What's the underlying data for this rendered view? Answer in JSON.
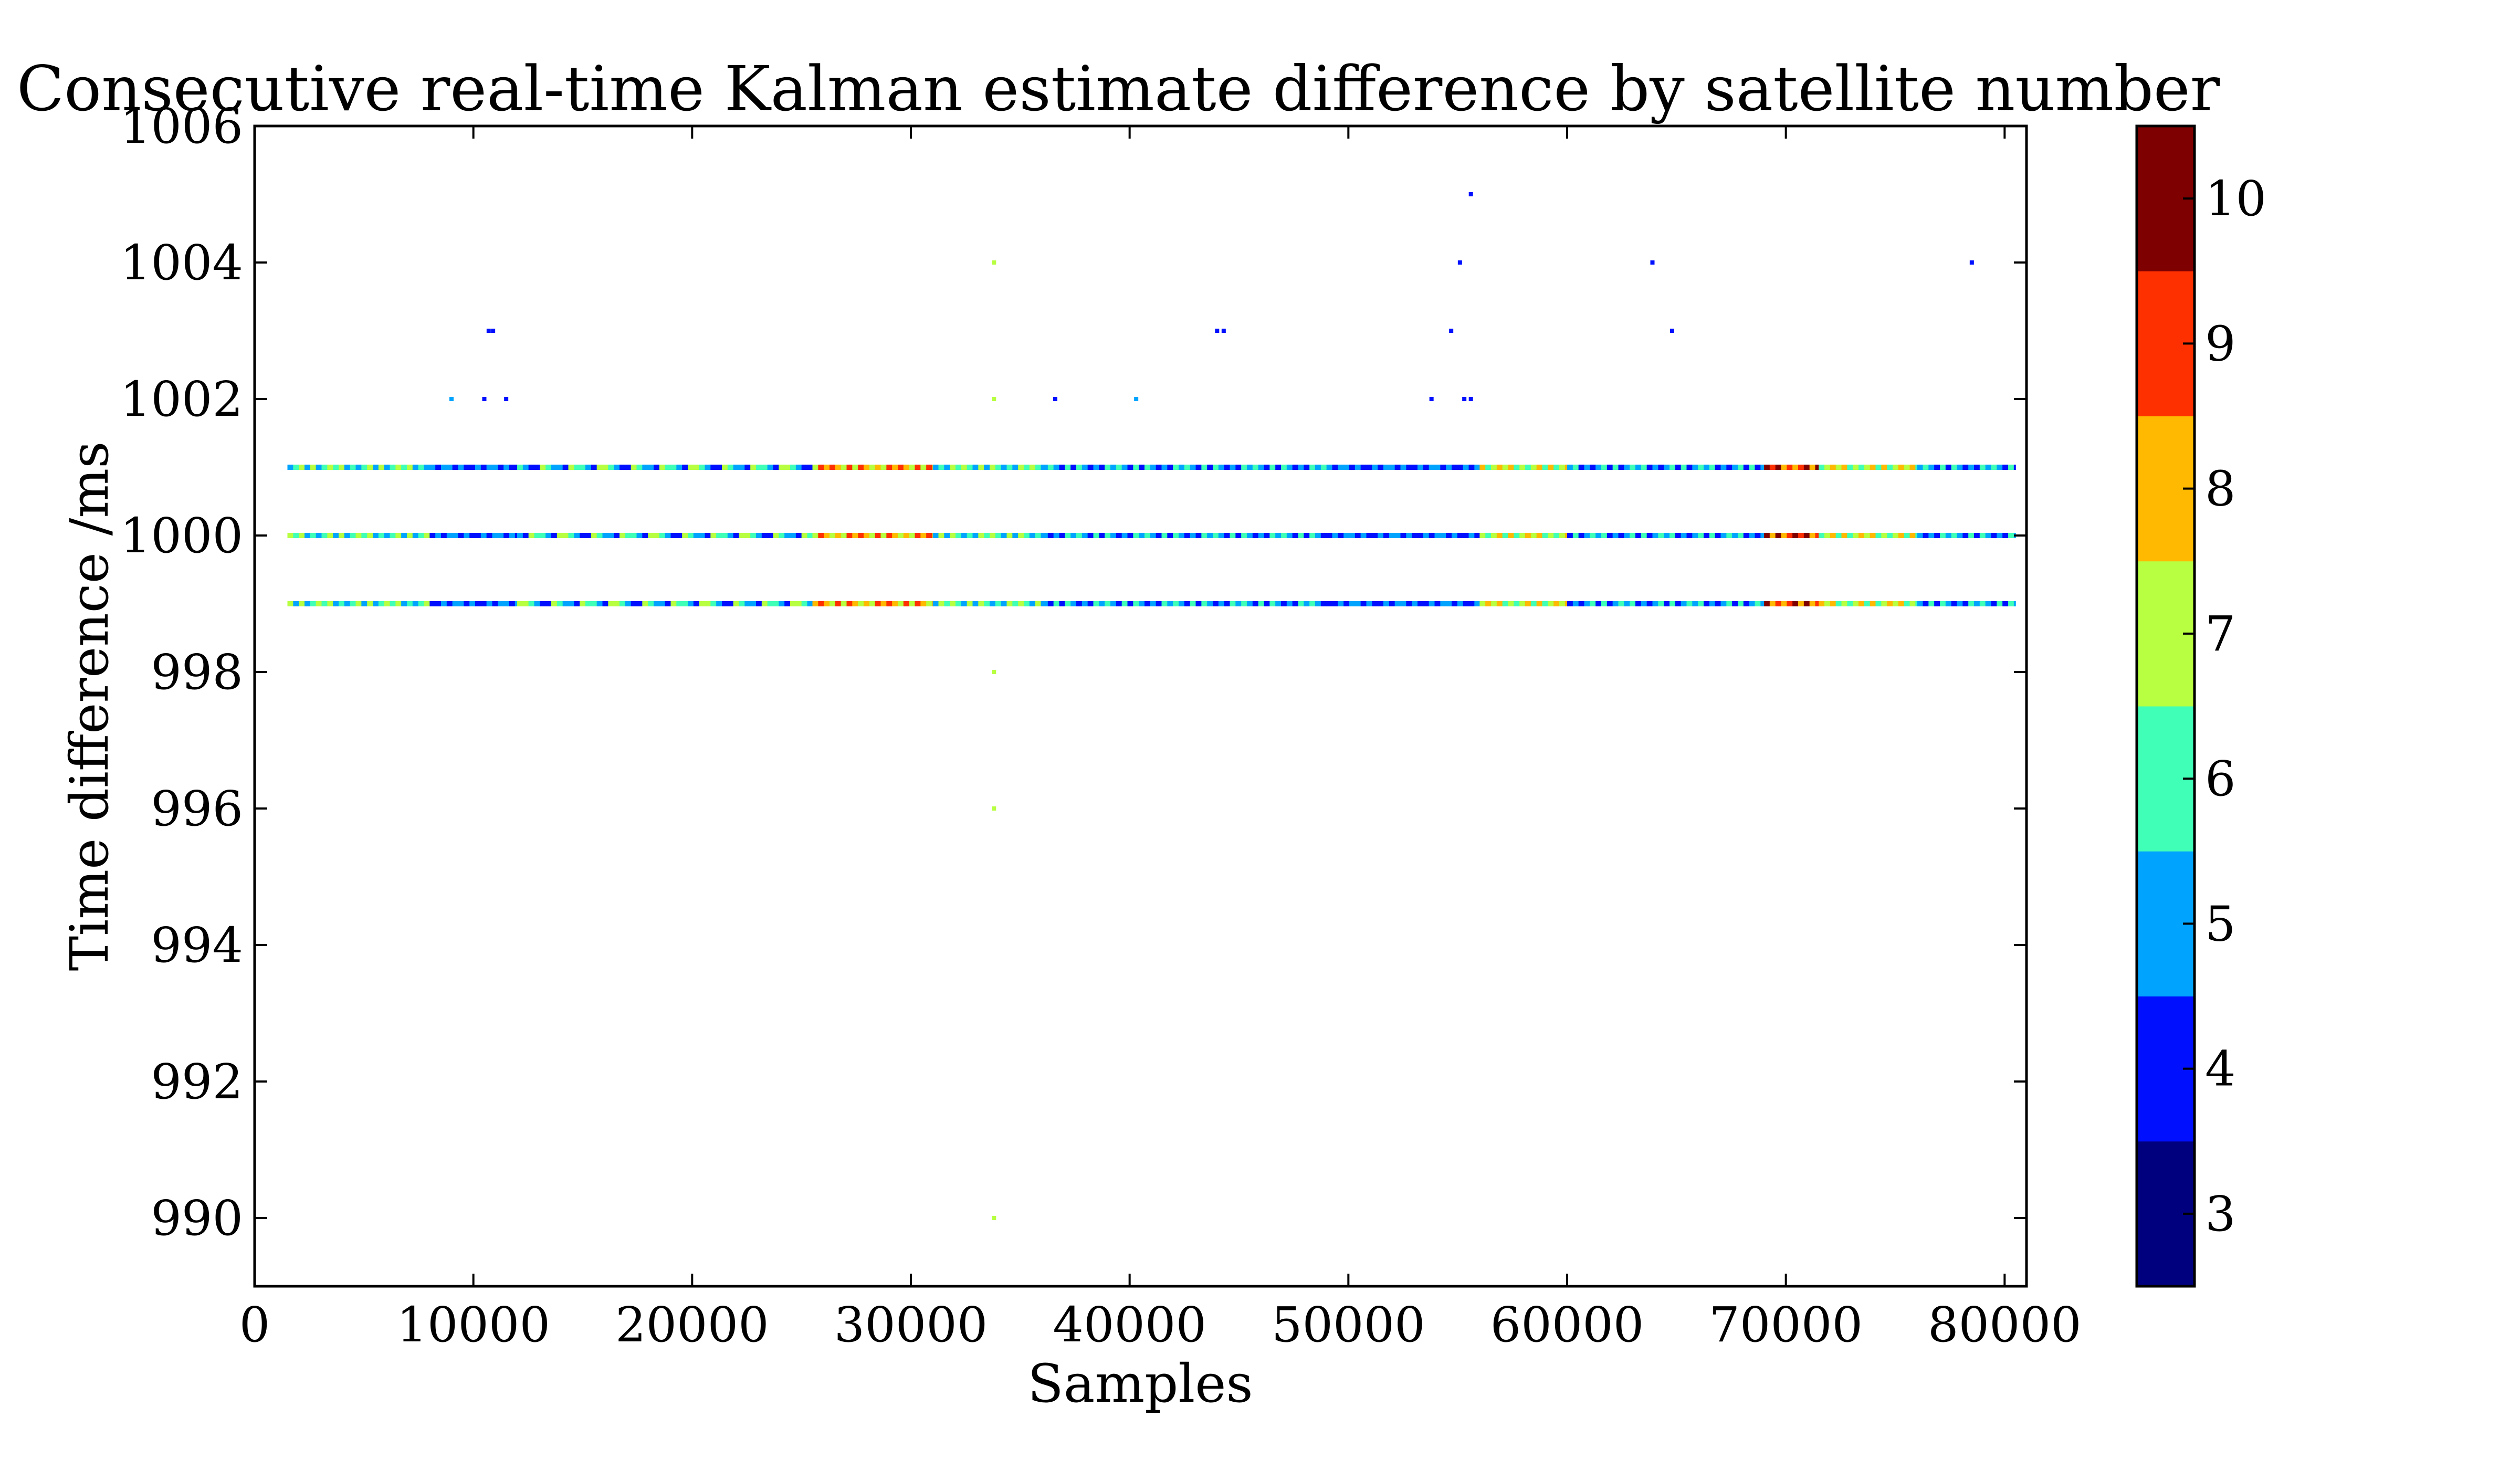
{
  "chart_data": {
    "type": "scatter",
    "title": "Consecutive real-time Kalman estimate difference by satellite number",
    "xlabel": "Samples",
    "ylabel": "Time difference /ms",
    "xlim": [
      0,
      81000
    ],
    "ylim": [
      989,
      1006
    ],
    "xticks": [
      0,
      10000,
      20000,
      30000,
      40000,
      50000,
      60000,
      70000,
      80000
    ],
    "yticks": [
      990,
      992,
      994,
      996,
      998,
      1000,
      1002,
      1004,
      1006
    ],
    "grid": false,
    "colorbar": {
      "label": "",
      "ticks": [
        3,
        4,
        5,
        6,
        7,
        8,
        9,
        10
      ],
      "colors": [
        "#00007f",
        "#0010ff",
        "#00a4ff",
        "#40ffb7",
        "#b7ff40",
        "#ffb900",
        "#ff3000",
        "#7f0000"
      ]
    },
    "bands": [
      {
        "y": 1001,
        "x_range": [
          1500,
          80500
        ],
        "segments": [
          {
            "x0": 1500,
            "x1": 8000,
            "sats": [
              5,
              6,
              7
            ]
          },
          {
            "x0": 8000,
            "x1": 12000,
            "sats": [
              4,
              5
            ]
          },
          {
            "x0": 12000,
            "x1": 25500,
            "sats": [
              5,
              6,
              7,
              4
            ]
          },
          {
            "x0": 25500,
            "x1": 31000,
            "sats": [
              9,
              8,
              7
            ]
          },
          {
            "x0": 31000,
            "x1": 36000,
            "sats": [
              7,
              6,
              5
            ]
          },
          {
            "x0": 36000,
            "x1": 49000,
            "sats": [
              5,
              4,
              6
            ]
          },
          {
            "x0": 49000,
            "x1": 56000,
            "sats": [
              4,
              5
            ]
          },
          {
            "x0": 56000,
            "x1": 60000,
            "sats": [
              7,
              8,
              6
            ]
          },
          {
            "x0": 60000,
            "x1": 69000,
            "sats": [
              5,
              6,
              4
            ]
          },
          {
            "x0": 69000,
            "x1": 71500,
            "sats": [
              9,
              10,
              8
            ]
          },
          {
            "x0": 71500,
            "x1": 76000,
            "sats": [
              7,
              8,
              6
            ]
          },
          {
            "x0": 76000,
            "x1": 80500,
            "sats": [
              5,
              4,
              6
            ]
          }
        ]
      },
      {
        "y": 1000,
        "x_range": [
          1500,
          80500
        ],
        "segments": [
          {
            "x0": 1500,
            "x1": 8000,
            "sats": [
              5,
              6,
              7
            ]
          },
          {
            "x0": 8000,
            "x1": 12000,
            "sats": [
              4,
              5
            ]
          },
          {
            "x0": 12000,
            "x1": 25500,
            "sats": [
              5,
              6,
              7,
              4
            ]
          },
          {
            "x0": 25500,
            "x1": 31000,
            "sats": [
              9,
              8,
              7
            ]
          },
          {
            "x0": 31000,
            "x1": 36000,
            "sats": [
              7,
              6,
              5
            ]
          },
          {
            "x0": 36000,
            "x1": 49000,
            "sats": [
              5,
              4,
              6
            ]
          },
          {
            "x0": 49000,
            "x1": 56000,
            "sats": [
              4,
              5
            ]
          },
          {
            "x0": 56000,
            "x1": 60000,
            "sats": [
              7,
              8,
              6
            ]
          },
          {
            "x0": 60000,
            "x1": 69000,
            "sats": [
              5,
              6,
              4
            ]
          },
          {
            "x0": 69000,
            "x1": 71500,
            "sats": [
              9,
              10,
              8
            ]
          },
          {
            "x0": 71500,
            "x1": 76000,
            "sats": [
              7,
              8,
              6
            ]
          },
          {
            "x0": 76000,
            "x1": 80500,
            "sats": [
              5,
              4,
              6
            ]
          }
        ]
      },
      {
        "y": 999,
        "x_range": [
          1500,
          80500
        ],
        "segments": [
          {
            "x0": 1500,
            "x1": 8000,
            "sats": [
              5,
              6,
              7
            ]
          },
          {
            "x0": 8000,
            "x1": 12000,
            "sats": [
              4,
              5
            ]
          },
          {
            "x0": 12000,
            "x1": 25500,
            "sats": [
              5,
              6,
              7,
              4
            ]
          },
          {
            "x0": 25500,
            "x1": 31000,
            "sats": [
              9,
              8,
              7
            ]
          },
          {
            "x0": 31000,
            "x1": 36000,
            "sats": [
              7,
              6,
              5
            ]
          },
          {
            "x0": 36000,
            "x1": 49000,
            "sats": [
              5,
              4,
              6
            ]
          },
          {
            "x0": 49000,
            "x1": 56000,
            "sats": [
              4,
              5
            ]
          },
          {
            "x0": 56000,
            "x1": 60000,
            "sats": [
              7,
              8,
              6
            ]
          },
          {
            "x0": 60000,
            "x1": 69000,
            "sats": [
              5,
              6,
              4
            ]
          },
          {
            "x0": 69000,
            "x1": 71500,
            "sats": [
              9,
              10,
              8
            ]
          },
          {
            "x0": 71500,
            "x1": 76000,
            "sats": [
              7,
              8,
              6
            ]
          },
          {
            "x0": 76000,
            "x1": 80500,
            "sats": [
              5,
              4,
              6
            ]
          }
        ]
      }
    ],
    "points": [
      {
        "x": 9000,
        "y": 1002,
        "sat": 5
      },
      {
        "x": 10500,
        "y": 1002,
        "sat": 4
      },
      {
        "x": 11500,
        "y": 1002,
        "sat": 4
      },
      {
        "x": 10700,
        "y": 1003,
        "sat": 4
      },
      {
        "x": 10900,
        "y": 1003,
        "sat": 4
      },
      {
        "x": 33800,
        "y": 1004,
        "sat": 7
      },
      {
        "x": 33800,
        "y": 1002,
        "sat": 7
      },
      {
        "x": 33800,
        "y": 998,
        "sat": 7
      },
      {
        "x": 33800,
        "y": 996,
        "sat": 7
      },
      {
        "x": 33800,
        "y": 990,
        "sat": 7
      },
      {
        "x": 36600,
        "y": 1002,
        "sat": 4
      },
      {
        "x": 40300,
        "y": 1002,
        "sat": 5
      },
      {
        "x": 44000,
        "y": 1003,
        "sat": 4
      },
      {
        "x": 44300,
        "y": 1003,
        "sat": 4
      },
      {
        "x": 53800,
        "y": 1002,
        "sat": 4
      },
      {
        "x": 54700,
        "y": 1003,
        "sat": 4
      },
      {
        "x": 55100,
        "y": 1004,
        "sat": 4
      },
      {
        "x": 55300,
        "y": 1002,
        "sat": 4
      },
      {
        "x": 55600,
        "y": 1002,
        "sat": 4
      },
      {
        "x": 55600,
        "y": 1005,
        "sat": 4
      },
      {
        "x": 63900,
        "y": 1004,
        "sat": 4
      },
      {
        "x": 64800,
        "y": 1003,
        "sat": 4
      },
      {
        "x": 78500,
        "y": 1004,
        "sat": 4
      }
    ]
  }
}
